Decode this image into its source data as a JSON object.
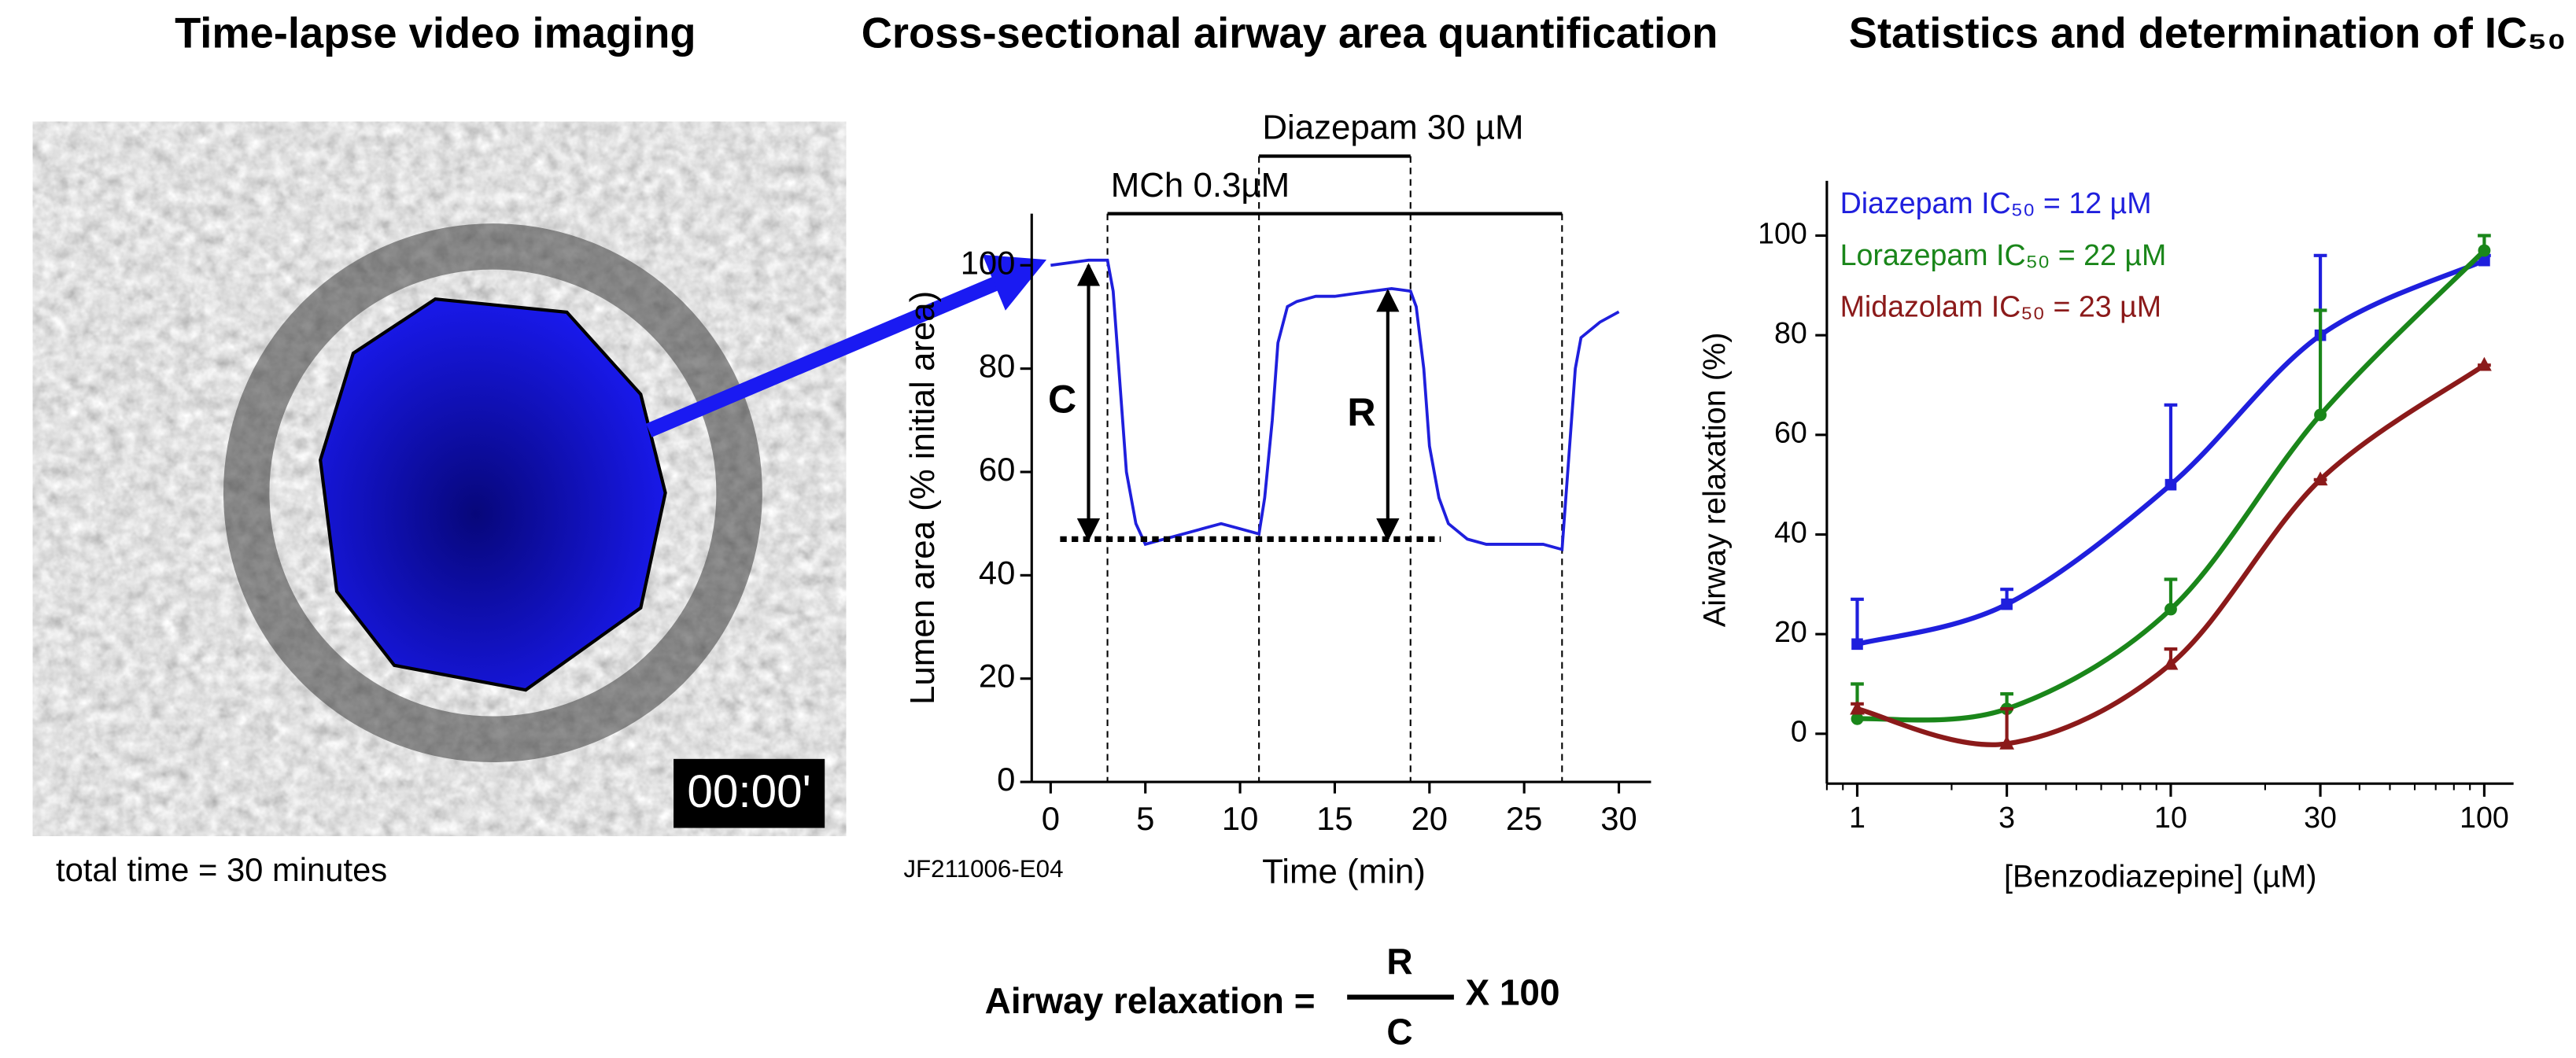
{
  "panels": {
    "imaging": {
      "title": "Time-lapse video imaging",
      "timestamp": "00:00'",
      "caption": "total time = 30 minutes"
    }
  },
  "formula": {
    "lhs": "Airway relaxation =",
    "numerator": "R",
    "denominator": "C",
    "factor": "X 100"
  },
  "chart_data": [
    {
      "type": "line",
      "title": "Cross-sectional airway area quantification",
      "x_label": "Time (min)",
      "y_label": "Lumen area (% initial area)",
      "note": "JF211006-E04",
      "color": "#1f1fdd",
      "x": [
        0,
        1,
        2,
        3,
        3.3,
        3.6,
        4,
        4.5,
        5,
        6,
        7,
        8,
        9,
        10,
        11,
        11.3,
        11.7,
        12,
        12.5,
        13,
        14,
        15,
        16,
        17,
        18,
        19,
        19.3,
        19.7,
        20,
        20.5,
        21,
        22,
        23,
        24,
        25,
        26,
        27,
        27.3,
        27.7,
        28,
        29,
        30
      ],
      "values": [
        100,
        100.5,
        101,
        101,
        95,
        80,
        60,
        50,
        46,
        47,
        48,
        49,
        50,
        49,
        48,
        55,
        70,
        85,
        92,
        93,
        94,
        94,
        94.5,
        95,
        95.5,
        95,
        92,
        80,
        65,
        55,
        50,
        47,
        46,
        46,
        46,
        46,
        45,
        60,
        80,
        86,
        89,
        91
      ],
      "xlim": [
        -1,
        31.7
      ],
      "xticks": [
        0,
        5,
        10,
        15,
        20,
        25,
        30
      ],
      "ylim": [
        0,
        110
      ],
      "yticks": [
        0,
        20,
        40,
        60,
        80,
        100
      ],
      "events": [
        {
          "label": "MCh 0.3µM",
          "start": 3,
          "end": 27
        },
        {
          "label": "Diazepam 30 µM",
          "start": 11,
          "end": 19
        }
      ],
      "arrows": [
        {
          "label": "C",
          "x": 2,
          "from": 100,
          "to": 47
        },
        {
          "label": "R",
          "x": 17.8,
          "from": 95,
          "to": 47
        }
      ],
      "baseline": {
        "y": 47,
        "from": 0.5,
        "to": 20.6
      }
    },
    {
      "type": "scatter",
      "title": "Statistics and determination of IC₅₀",
      "x_label": "[Benzodiazepine]  (µM)",
      "y_label": "Airway relaxation (%)",
      "log_x": true,
      "x": [
        1,
        3,
        10,
        30,
        100
      ],
      "xlim": [
        0.8,
        124
      ],
      "xticks": [
        1,
        3,
        10,
        30,
        100
      ],
      "ylim": [
        -10,
        111
      ],
      "yticks": [
        0,
        20,
        40,
        60,
        80,
        100
      ],
      "series": [
        {
          "name": "Diazepam IC₅₀ = 12 µM",
          "color": "#1f1fdd",
          "marker": "square",
          "values": [
            18,
            26,
            50,
            80,
            95
          ],
          "errors": [
            9,
            3,
            16,
            16,
            1
          ]
        },
        {
          "name": "Lorazepam IC₅₀ = 22 µM",
          "color": "#1a861a",
          "marker": "circle",
          "values": [
            3,
            5,
            25,
            64,
            97
          ],
          "errors": [
            7,
            3,
            6,
            21,
            3
          ]
        },
        {
          "name": "Midazolam IC₅₀ = 23 µM",
          "color": "#8b1a1a",
          "marker": "triangle",
          "values": [
            5,
            -2,
            14,
            51,
            74
          ],
          "errors": [
            1,
            7,
            3,
            0,
            0
          ]
        }
      ]
    }
  ]
}
